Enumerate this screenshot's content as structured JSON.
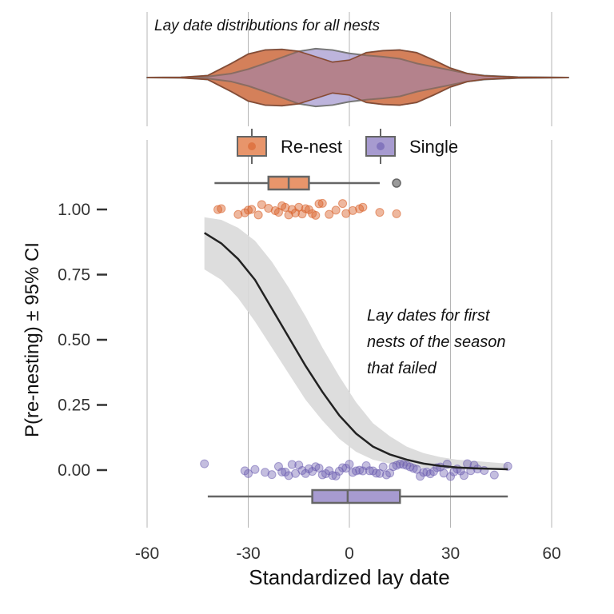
{
  "chart_data": [
    {
      "type": "violin",
      "title": "Lay date distributions for all nests",
      "x_range": [
        -60,
        65
      ],
      "series": [
        {
          "name": "Re-nest",
          "color": "#E8956B",
          "density": [
            [
              -60,
              0
            ],
            [
              -50,
              0.005
            ],
            [
              -42,
              0.06
            ],
            [
              -35,
              0.42
            ],
            [
              -30,
              0.7
            ],
            [
              -25,
              0.82
            ],
            [
              -20,
              0.84
            ],
            [
              -15,
              0.78
            ],
            [
              -10,
              0.62
            ],
            [
              -5,
              0.46
            ],
            [
              0,
              0.52
            ],
            [
              5,
              0.74
            ],
            [
              10,
              0.8
            ],
            [
              15,
              0.82
            ],
            [
              20,
              0.74
            ],
            [
              25,
              0.52
            ],
            [
              30,
              0.28
            ],
            [
              35,
              0.12
            ],
            [
              40,
              0.05
            ],
            [
              50,
              0.008
            ],
            [
              65,
              0
            ]
          ]
        },
        {
          "name": "Single",
          "color": "#A79BD0",
          "density": [
            [
              -60,
              0
            ],
            [
              -50,
              0.005
            ],
            [
              -42,
              0.03
            ],
            [
              -35,
              0.12
            ],
            [
              -30,
              0.25
            ],
            [
              -25,
              0.42
            ],
            [
              -20,
              0.6
            ],
            [
              -15,
              0.78
            ],
            [
              -10,
              0.86
            ],
            [
              -5,
              0.82
            ],
            [
              0,
              0.72
            ],
            [
              5,
              0.66
            ],
            [
              10,
              0.62
            ],
            [
              15,
              0.56
            ],
            [
              20,
              0.42
            ],
            [
              25,
              0.32
            ],
            [
              30,
              0.22
            ],
            [
              35,
              0.12
            ],
            [
              40,
              0.06
            ],
            [
              50,
              0.015
            ],
            [
              65,
              0
            ]
          ]
        }
      ]
    },
    {
      "type": "scatter",
      "xlabel": "Standardized lay date",
      "ylabel": "P(re-nesting) ± 95% CI",
      "xlim": [
        -60,
        60
      ],
      "ylim": [
        0,
        1
      ],
      "x_ticks": [
        "-60",
        "-30",
        "0",
        "30",
        "60"
      ],
      "y_ticks": [
        "0.00",
        "0.25",
        "0.50",
        "0.75",
        "1.00"
      ],
      "annotation": [
        "Lay dates for first",
        "nests of the season",
        "that failed"
      ],
      "legend": {
        "position": "top",
        "items": [
          "Re-nest",
          "Single"
        ]
      },
      "colors": {
        "renest": "#E8956B",
        "renest_point": "#D9622B",
        "single": "#A79BD0",
        "single_point": "#6B5CB0",
        "ribbon": "#D9D9D9",
        "curve": "#222222"
      },
      "logistic_fit": {
        "x": [
          -43,
          -38,
          -33,
          -28,
          -23,
          -18,
          -13,
          -8,
          -3,
          2,
          7,
          12,
          17,
          22,
          27,
          32,
          37,
          42,
          47
        ],
        "y": [
          0.91,
          0.87,
          0.81,
          0.73,
          0.62,
          0.51,
          0.4,
          0.3,
          0.21,
          0.14,
          0.09,
          0.06,
          0.04,
          0.025,
          0.016,
          0.01,
          0.007,
          0.005,
          0.003
        ],
        "lower": [
          0.77,
          0.73,
          0.66,
          0.57,
          0.47,
          0.37,
          0.27,
          0.19,
          0.12,
          0.07,
          0.04,
          0.025,
          0.015,
          0.009,
          0.005,
          0.003,
          0.002,
          0.001,
          0.001
        ],
        "upper": [
          0.97,
          0.96,
          0.93,
          0.88,
          0.8,
          0.7,
          0.59,
          0.47,
          0.36,
          0.26,
          0.18,
          0.13,
          0.09,
          0.065,
          0.05,
          0.04,
          0.035,
          0.03,
          0.025
        ]
      },
      "boxplots": [
        {
          "name": "Re-nest",
          "min": -40,
          "q1": -24,
          "median": -18,
          "q3": -12,
          "max": 9,
          "outliers": [
            14
          ]
        },
        {
          "name": "Single",
          "min": -42,
          "q1": -11,
          "median": -0.5,
          "q3": 15,
          "max": 47,
          "outliers": []
        }
      ],
      "points_renest": [
        -39,
        -38,
        -33,
        -31,
        -30,
        -29,
        -27,
        -26,
        -24,
        -22,
        -21,
        -20,
        -19,
        -18,
        -17,
        -16,
        -15,
        -14,
        -13,
        -12,
        -11,
        -10,
        -9,
        -8,
        -6,
        -4,
        -2,
        -1,
        1,
        3,
        4,
        9,
        14
      ],
      "points_single": [
        -43,
        -31,
        -30,
        -28,
        -25,
        -23,
        -21,
        -20,
        -19,
        -18,
        -17,
        -16,
        -15,
        -14,
        -13,
        -12,
        -11,
        -10,
        -9,
        -8,
        -7,
        -6,
        -5,
        -4,
        -3,
        -2,
        -1,
        0,
        1,
        2,
        3,
        4,
        5,
        6,
        7,
        8,
        9,
        10,
        11,
        12,
        13,
        14,
        15,
        16,
        17,
        18,
        19,
        20,
        21,
        22,
        23,
        24,
        25,
        26,
        27,
        28,
        29,
        30,
        31,
        32,
        33,
        34,
        35,
        36,
        37,
        38,
        40,
        43,
        47
      ]
    }
  ]
}
